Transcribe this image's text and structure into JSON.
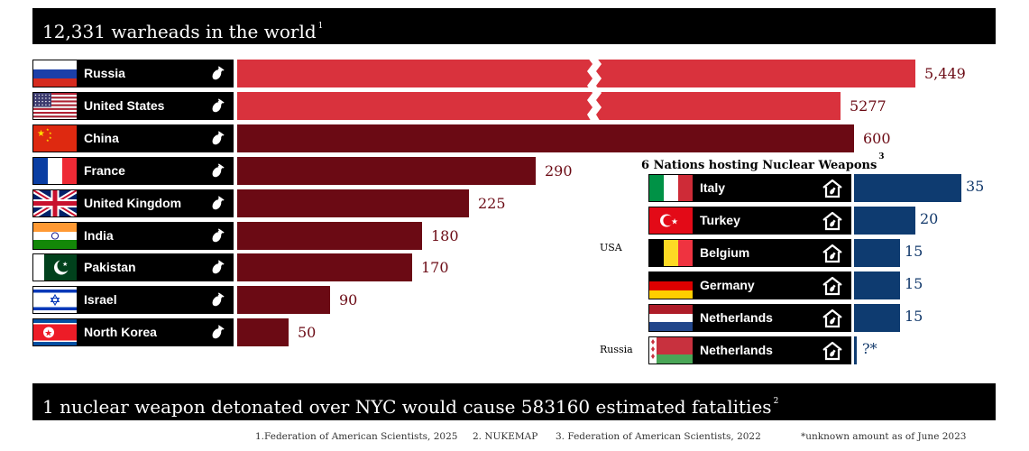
{
  "header": {
    "title": "12,331 warheads in the world",
    "footnote": "1"
  },
  "chart_data": [
    {
      "type": "bar",
      "orientation": "horizontal",
      "title": "12,331 warheads in the world",
      "categories": [
        "Russia",
        "United States",
        "China",
        "France",
        "United Kingdom",
        "India",
        "Pakistan",
        "Israel",
        "North Korea"
      ],
      "values": [
        5449,
        5277,
        600,
        290,
        225,
        180,
        170,
        90,
        50
      ],
      "value_labels": [
        "5,449",
        "5277",
        "600",
        "290",
        "225",
        "180",
        "170",
        "90",
        "50"
      ],
      "broken_axis": true,
      "colors": {
        "top_two": "#d9323d",
        "others": "#6b0a14"
      }
    },
    {
      "type": "bar",
      "orientation": "horizontal",
      "title": "6 Nations hosting Nuclear Weapons",
      "footnote": "3",
      "categories": [
        "Italy",
        "Turkey",
        "Belgium",
        "Germany",
        "Netherlands",
        "Netherlands"
      ],
      "values": [
        35,
        20,
        15,
        15,
        15,
        null
      ],
      "value_labels": [
        "35",
        "20",
        "15",
        "15",
        "15",
        "?*"
      ],
      "groups": [
        {
          "label": "USA"
        },
        {
          "label": "Russia"
        }
      ],
      "colors": {
        "bars": "#0e3b70"
      }
    }
  ],
  "footer": {
    "title": "1 nuclear weapon detonated over NYC would cause 583160 estimated fatalities",
    "footnote": "2"
  },
  "sources": [
    "1.Federation of American Scientists, 2025",
    "2. NUKEMAP",
    "3. Federation of American Scientists, 2022",
    "*unknown amount as of June 2023"
  ],
  "icons": {
    "warhead": "bomb-icon",
    "hosting": "home-icon"
  }
}
